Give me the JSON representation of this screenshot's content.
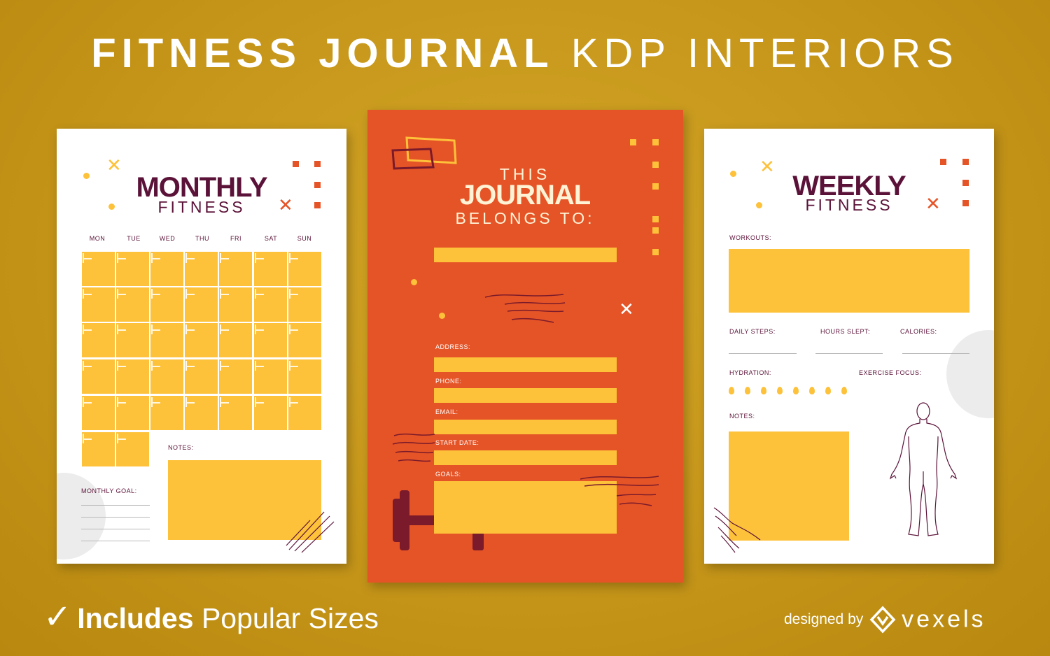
{
  "headline": {
    "bold": "FITNESS JOURNAL",
    "light": "KDP INTERIORS"
  },
  "monthly": {
    "title": "MONTHLY",
    "subtitle": "FITNESS",
    "days": [
      "MON",
      "TUE",
      "WED",
      "THU",
      "FRI",
      "SAT",
      "SUN"
    ],
    "notes_label": "NOTES:",
    "goal_label": "MONTHLY GOAL:"
  },
  "owner": {
    "line1": "THIS",
    "line2": "JOURNAL",
    "line3": "BELONGS TO:",
    "fields": [
      "ADDRESS:",
      "PHONE:",
      "EMAIL:",
      "START DATE:",
      "GOALS:"
    ]
  },
  "weekly": {
    "title": "WEEKLY",
    "subtitle": "FITNESS",
    "workouts_label": "WORKOUTS:",
    "steps_label": "DAILY STEPS:",
    "sleep_label": "HOURS SLEPT:",
    "calories_label": "CALORIES:",
    "hydration_label": "HYDRATION:",
    "focus_label": "EXERCISE FOCUS:",
    "notes_label": "NOTES:"
  },
  "footer": {
    "check": "✓",
    "bold": "Includes",
    "rest": "Popular Sizes",
    "designed_by": "designed by",
    "brand": "vexels"
  },
  "colors": {
    "background": "#c89a1c",
    "accent": "#fdc13a",
    "orange": "#e55427",
    "title": "#5b1238"
  },
  "icons": [
    "x-mark-icon",
    "dumbbell-icon",
    "human-body-icon",
    "water-drop-icon",
    "vexels-logo-icon"
  ]
}
